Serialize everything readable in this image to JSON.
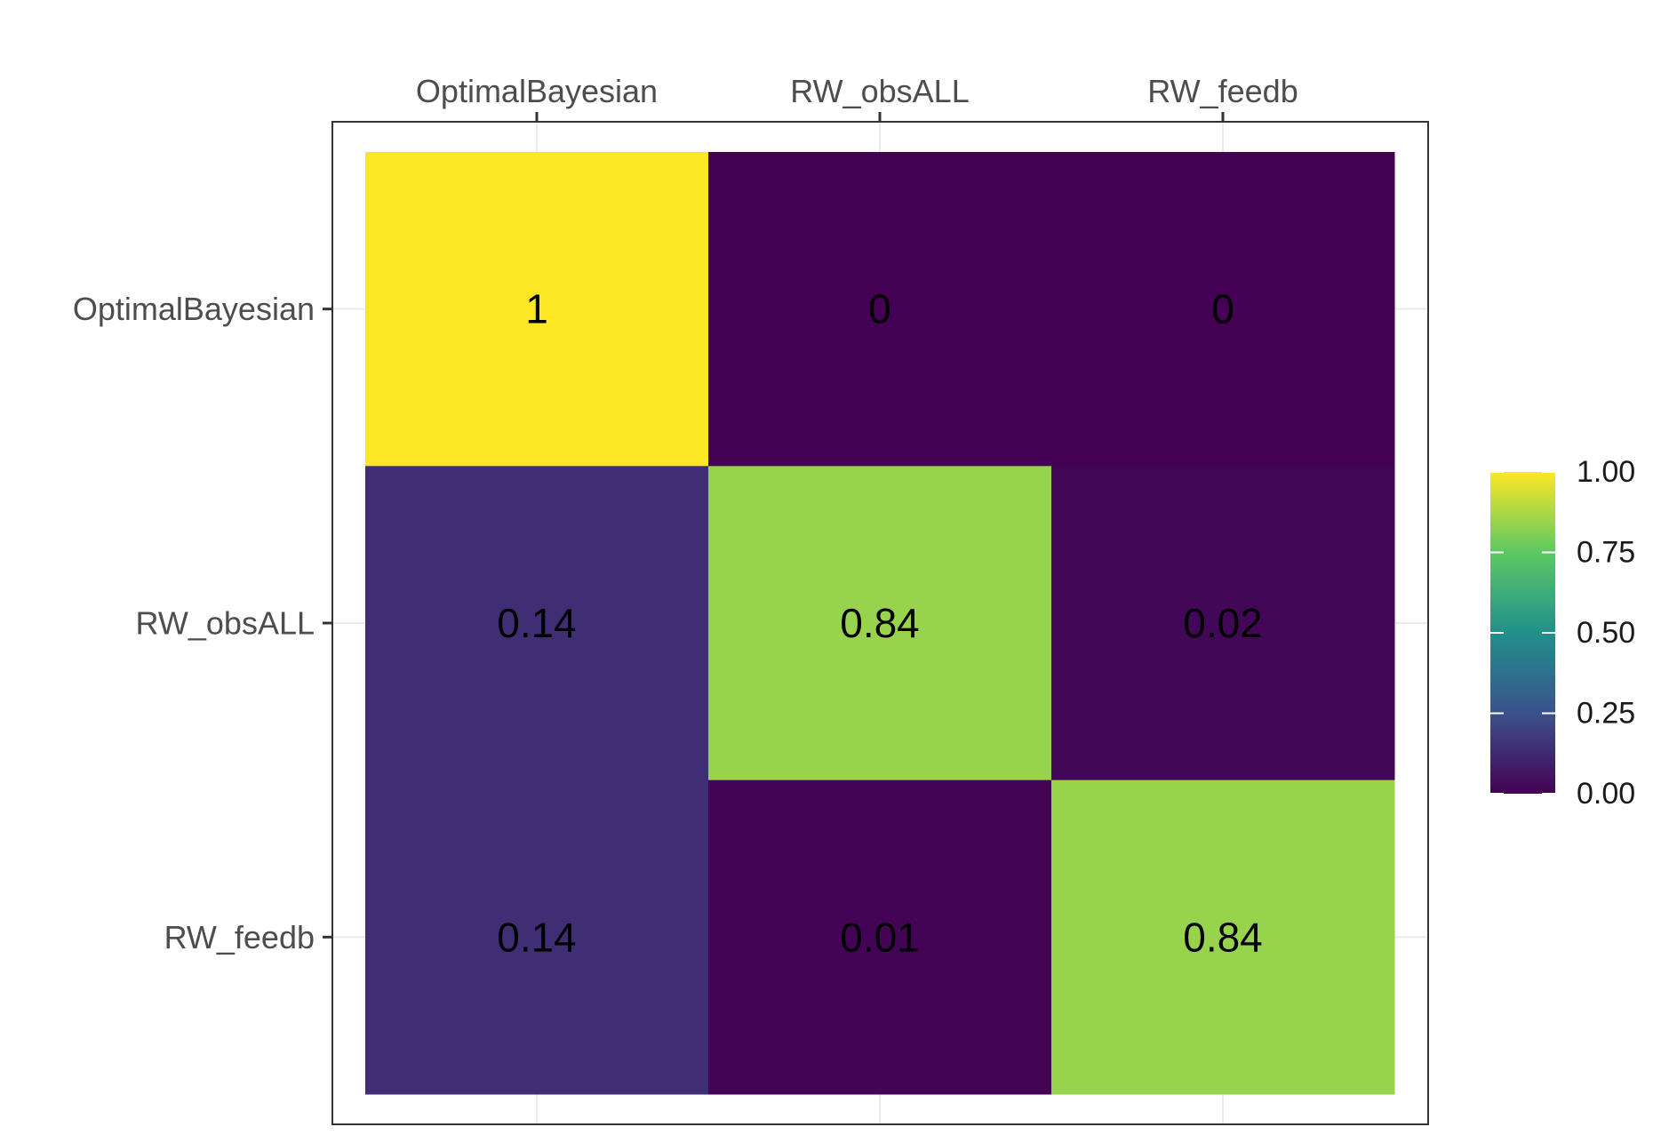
{
  "chart_data": {
    "type": "heatmap",
    "title": "",
    "xlabel": "",
    "ylabel": "",
    "x_axis_position": "top",
    "x_categories": [
      "OptimalBayesian",
      "RW_obsALL",
      "RW_feedb"
    ],
    "y_categories": [
      "OptimalBayesian",
      "RW_obsALL",
      "RW_feedb"
    ],
    "values": [
      [
        1,
        0,
        0
      ],
      [
        0.14,
        0.84,
        0.02
      ],
      [
        0.14,
        0.01,
        0.84
      ]
    ],
    "cell_labels": [
      [
        "1",
        "0",
        "0"
      ],
      [
        "0.14",
        "0.84",
        "0.02"
      ],
      [
        "0.14",
        "0.01",
        "0.84"
      ]
    ],
    "colorscale": "viridis",
    "color_range": [
      0,
      1
    ],
    "colorbar": {
      "ticks": [
        1.0,
        0.75,
        0.5,
        0.25,
        0.0
      ],
      "tick_labels": [
        "1.00",
        "0.75",
        "0.50",
        "0.25",
        "0.00"
      ]
    },
    "legend_position": "right",
    "grid": true
  },
  "colors": {
    "viridis_stops": [
      "#440154",
      "#3b528b",
      "#21908c",
      "#5dc863",
      "#fde725"
    ],
    "panel_border": "#333333",
    "grid": "#ebebeb",
    "axis_text": "#4d4d4d",
    "cell_text": "#000000",
    "tick_mark": "#333333"
  }
}
